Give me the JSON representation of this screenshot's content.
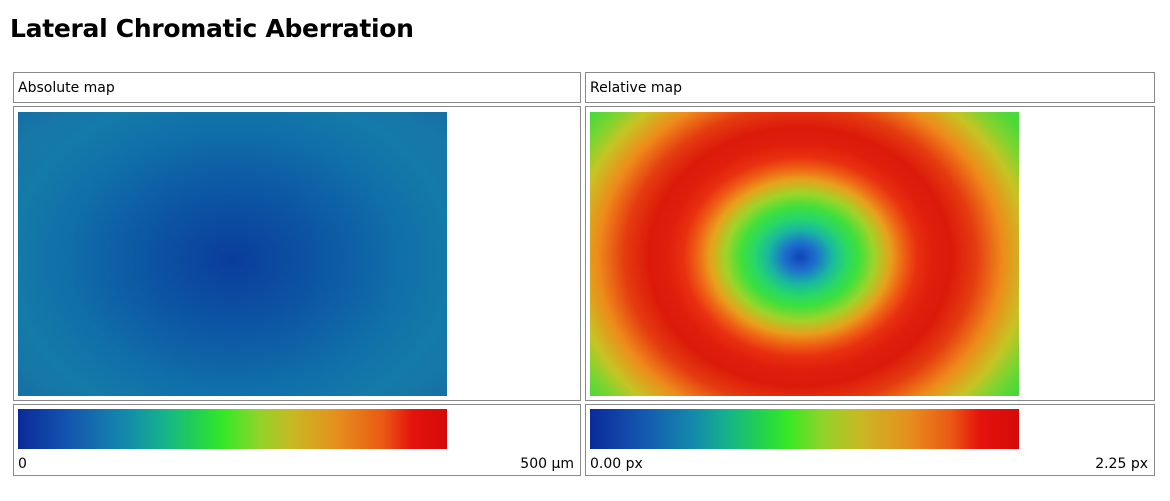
{
  "page": {
    "title": "Lateral Chromatic Aberration"
  },
  "absolute_map": {
    "label": "Absolute map",
    "legend_min": "0",
    "legend_max": "500 µm"
  },
  "relative_map": {
    "label": "Relative map",
    "legend_min": "0.00 px",
    "legend_max": "2.25 px"
  },
  "colors": {
    "border": "#8a8a8a",
    "scale_low": "#0b2a9a",
    "scale_mid": "#36e826",
    "scale_high": "#d40a0a"
  }
}
